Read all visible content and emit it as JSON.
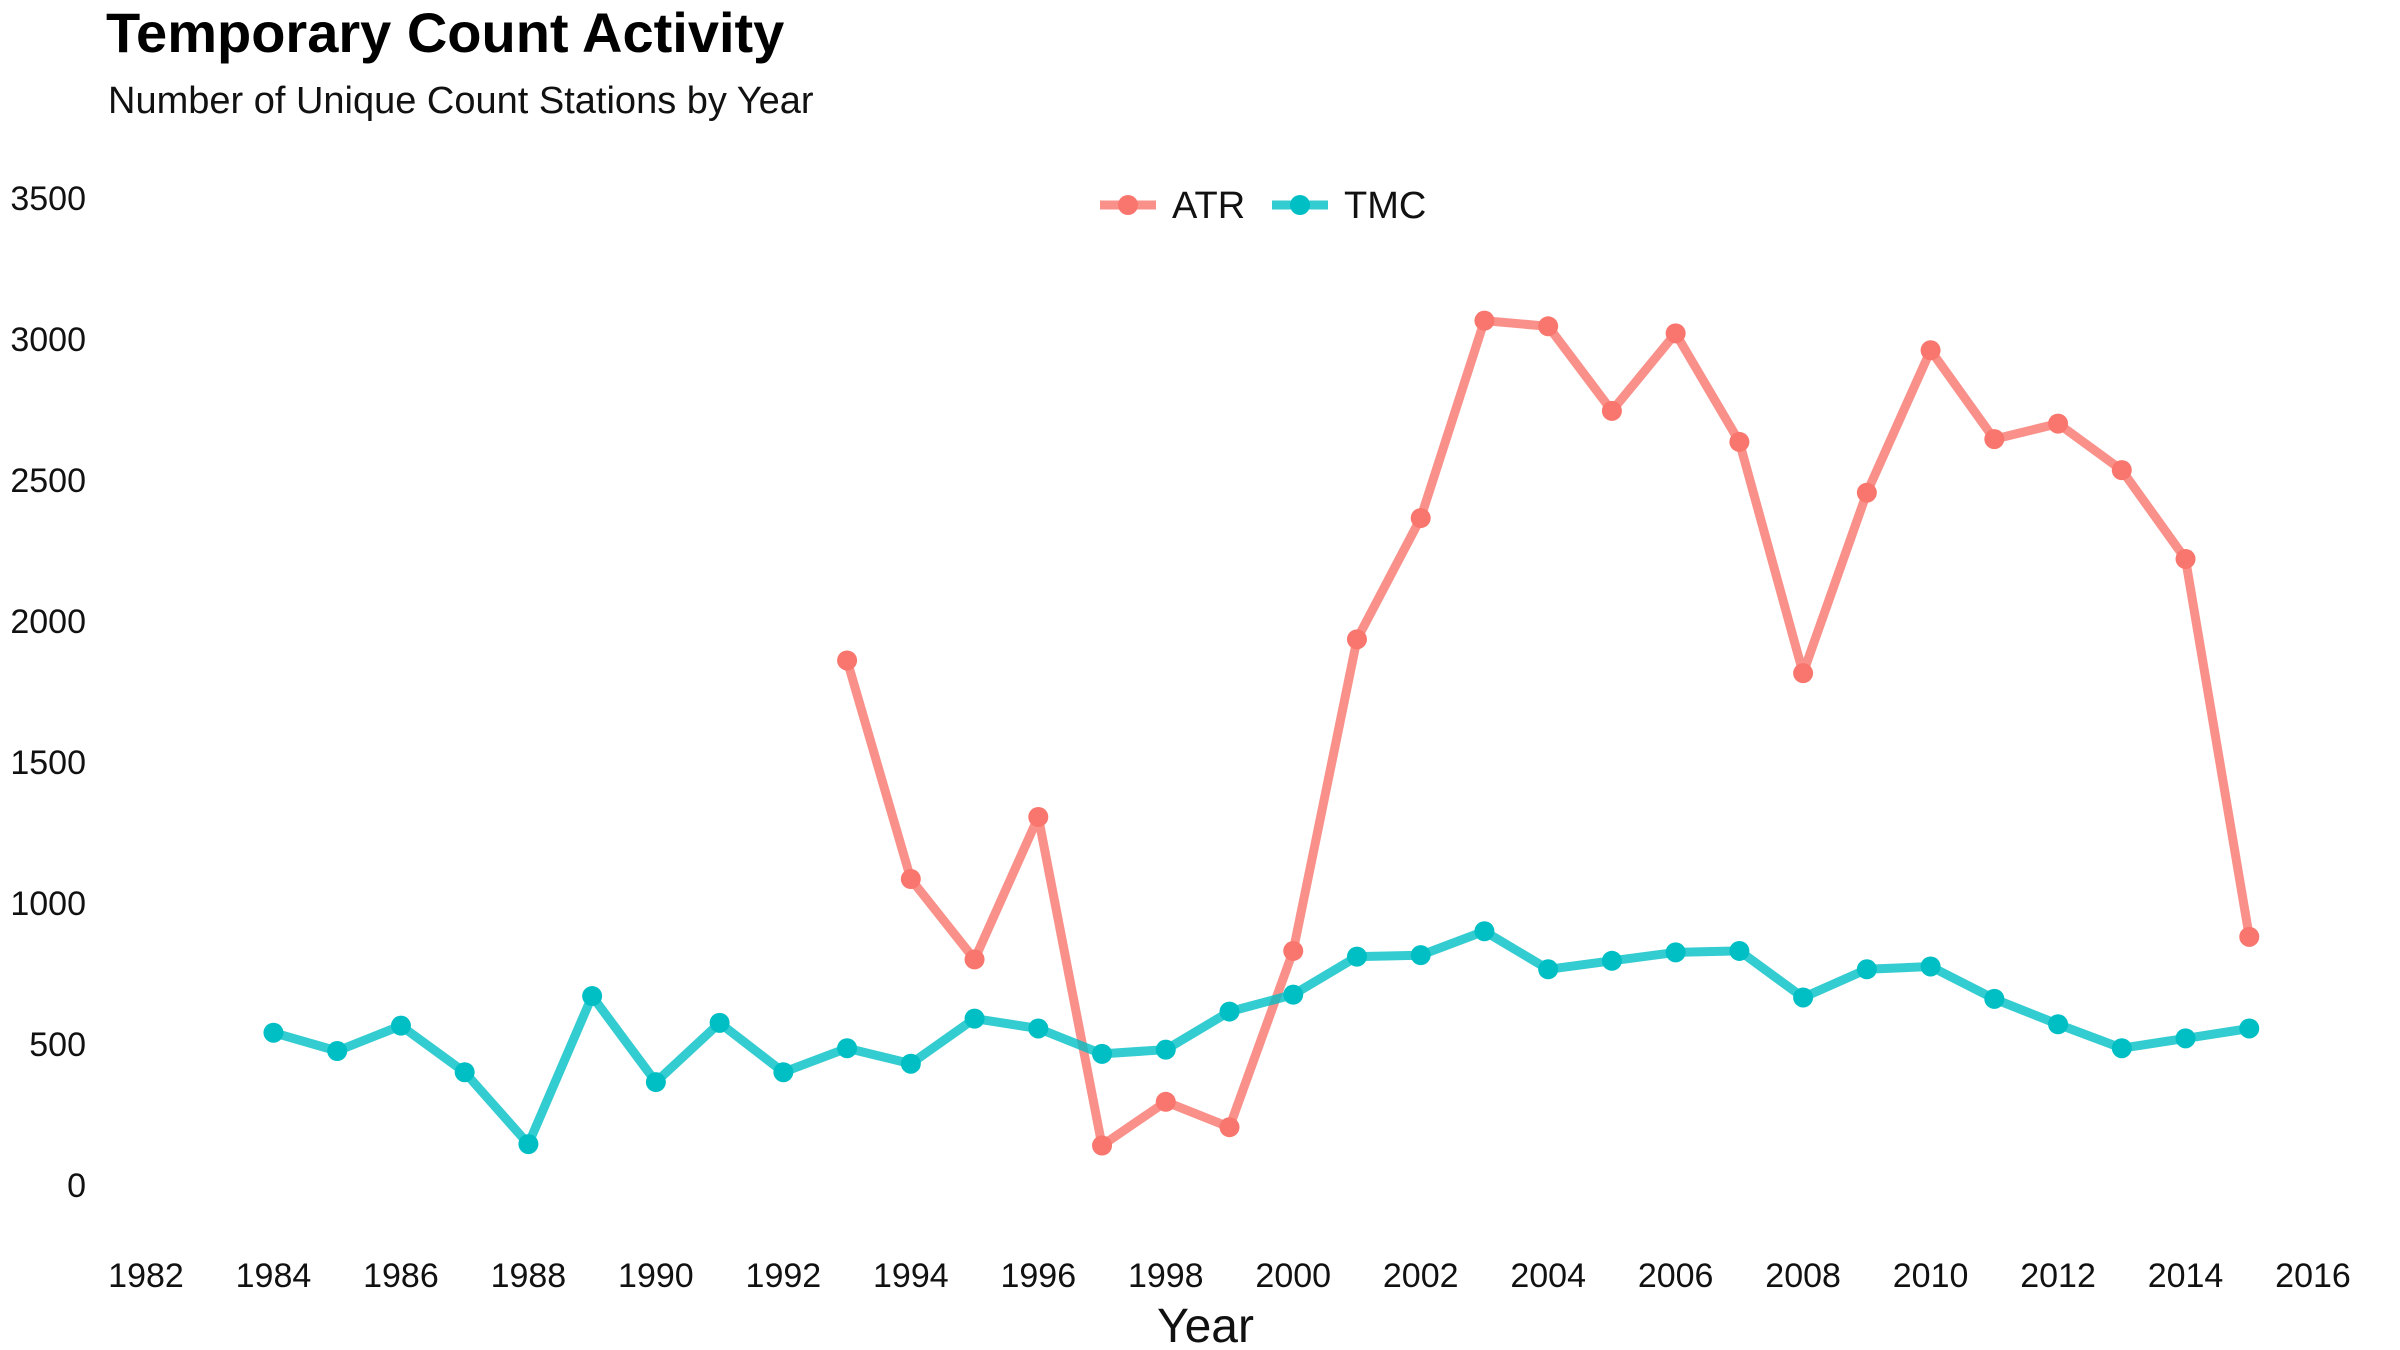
{
  "chart_data": {
    "type": "line",
    "title": "Temporary Count Activity",
    "subtitle": "Number of Unique Count Stations by Year",
    "xlabel": "Year",
    "ylabel": "",
    "xlim": [
      1982,
      2016
    ],
    "ylim": [
      0,
      3500
    ],
    "x_ticks": [
      1982,
      1984,
      1986,
      1988,
      1990,
      1992,
      1994,
      1996,
      1998,
      2000,
      2002,
      2004,
      2006,
      2008,
      2010,
      2012,
      2014,
      2016
    ],
    "y_ticks": [
      0,
      500,
      1000,
      1500,
      2000,
      2500,
      3000,
      3500
    ],
    "grid": false,
    "legend_position": "top",
    "series": [
      {
        "name": "ATR",
        "color": "#F8766D",
        "x": [
          1993,
          1994,
          1995,
          1996,
          1997,
          1998,
          1999,
          2000,
          2001,
          2002,
          2003,
          2004,
          2005,
          2006,
          2007,
          2008,
          2009,
          2010,
          2011,
          2012,
          2013,
          2014,
          2015
        ],
        "values": [
          1860,
          1085,
          800,
          1305,
          140,
          295,
          205,
          830,
          1935,
          2365,
          3065,
          3045,
          2745,
          3020,
          2635,
          1815,
          2455,
          2960,
          2645,
          2700,
          2535,
          2220,
          880
        ]
      },
      {
        "name": "TMC",
        "color": "#00BFC4",
        "x": [
          1984,
          1985,
          1986,
          1987,
          1988,
          1989,
          1990,
          1991,
          1992,
          1993,
          1994,
          1995,
          1996,
          1997,
          1998,
          1999,
          2000,
          2001,
          2002,
          2003,
          2004,
          2005,
          2006,
          2007,
          2008,
          2009,
          2010,
          2011,
          2012,
          2013,
          2014,
          2015
        ],
        "values": [
          540,
          475,
          565,
          400,
          145,
          670,
          365,
          575,
          400,
          485,
          430,
          590,
          555,
          465,
          480,
          615,
          675,
          810,
          815,
          900,
          765,
          795,
          825,
          830,
          665,
          765,
          775,
          660,
          570,
          485,
          520,
          555
        ]
      }
    ]
  }
}
